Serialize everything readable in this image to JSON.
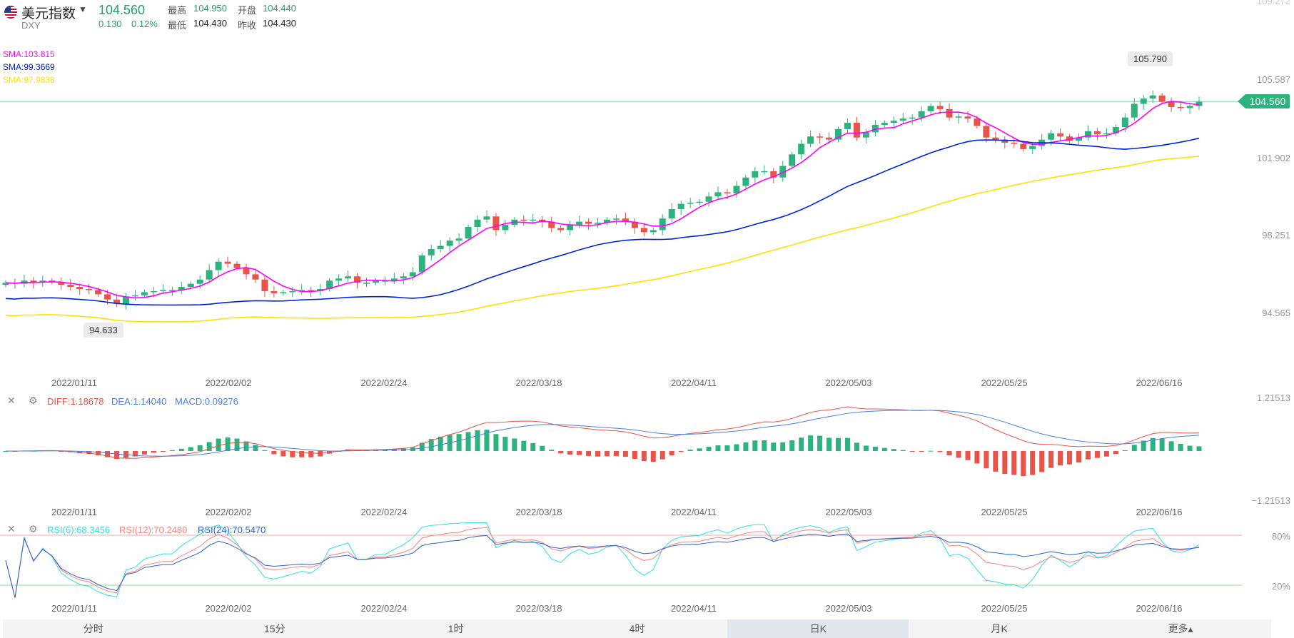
{
  "header": {
    "name": "美元指数",
    "ticker": "DXY",
    "price": "104.560",
    "change": "0.130",
    "change_pct": "0.12%",
    "high_label": "最高",
    "high": "104.950",
    "open_label": "开盘",
    "open": "104.440",
    "low_label": "最低",
    "low": "104.430",
    "prev_label": "昨收",
    "prev": "104.430",
    "dropdown_icon": "caret-down-icon",
    "flag_icon": "us-flag-icon"
  },
  "colors": {
    "up": "#2db37e",
    "down": "#e8534a",
    "sma1": "#ff00ff",
    "sma2": "#0022dd",
    "sma3": "#ffe100",
    "diff": "#e8534a",
    "dea": "#4a7fe0",
    "rsi6": "#2ee0e0",
    "rsi12": "#ff8080",
    "rsi24": "#3060d0"
  },
  "price_panel": {
    "sma_labels": [
      "SMA:103.815",
      "SMA:99.3669",
      "SMA:97.9838"
    ],
    "top_label": "109.272",
    "y_labels": [
      "105.587",
      "101.902",
      "98.251",
      "94.565"
    ],
    "current_price": "104.560",
    "high_tip": "105.790",
    "low_tip": "94.633"
  },
  "dates": [
    "2022/01/11",
    "2022/02/02",
    "2022/02/24",
    "2022/03/18",
    "2022/04/11",
    "2022/05/03",
    "2022/05/25",
    "2022/06/16"
  ],
  "macd_panel": {
    "diff_label": "DIFF:1.18678",
    "dea_label": "DEA:1.14040",
    "macd_label": "MACD:0.09276",
    "y_top": "1.21513",
    "y_bottom": "−1.21513"
  },
  "rsi_panel": {
    "rsi6_label": "RSI(6):68.3456",
    "rsi12_label": "RSI(12):70.2480",
    "rsi24_label": "RSI(24):70.5470",
    "y_top": "80%",
    "y_bottom": "20%"
  },
  "tabs": [
    "分时",
    "15分",
    "1时",
    "4时",
    "日K",
    "月K",
    "更多▴"
  ],
  "active_tab": 4,
  "chart_data": [
    {
      "type": "candlestick",
      "title": "美元指数 DXY",
      "ylim": [
        93.0,
        109.272
      ],
      "x_dates": [
        "2022/01/11",
        "2022/02/02",
        "2022/02/24",
        "2022/03/18",
        "2022/04/11",
        "2022/05/03",
        "2022/05/25",
        "2022/06/16"
      ],
      "closes": [
        95.95,
        95.9,
        96.05,
        95.95,
        96.05,
        96.0,
        95.85,
        95.75,
        95.65,
        95.6,
        95.4,
        95.15,
        94.95,
        95.3,
        95.35,
        95.5,
        95.55,
        95.6,
        95.6,
        95.75,
        95.9,
        96.1,
        96.55,
        96.95,
        96.85,
        96.65,
        96.35,
        96.1,
        95.55,
        95.45,
        95.5,
        95.55,
        95.6,
        95.55,
        95.65,
        96.05,
        96.15,
        96.25,
        95.95,
        95.95,
        96.05,
        96.05,
        96.15,
        96.25,
        96.45,
        97.25,
        97.55,
        97.7,
        97.95,
        98.05,
        98.6,
        98.95,
        99.1,
        98.45,
        98.7,
        98.95,
        98.9,
        98.95,
        98.85,
        98.55,
        98.45,
        98.7,
        98.85,
        98.75,
        98.8,
        98.95,
        99.0,
        98.85,
        98.55,
        98.35,
        98.45,
        99.0,
        99.45,
        99.7,
        99.75,
        99.8,
        100.05,
        100.25,
        100.2,
        100.55,
        100.95,
        101.25,
        101.25,
        100.95,
        101.5,
        102.05,
        102.55,
        102.9,
        102.85,
        102.75,
        103.25,
        103.55,
        102.85,
        103.1,
        103.45,
        103.55,
        103.65,
        103.75,
        103.8,
        104.1,
        104.35,
        104.2,
        103.8,
        103.85,
        103.75,
        103.4,
        102.85,
        102.75,
        102.6,
        102.55,
        102.3,
        102.45,
        102.75,
        103.05,
        102.9,
        102.7,
        102.85,
        103.15,
        103.0,
        103.05,
        103.35,
        103.8,
        104.45,
        104.7,
        104.85,
        104.55,
        104.3,
        104.25,
        104.35,
        104.55
      ],
      "sma_periods_labels": [
        "SMA:103.815",
        "SMA:99.3669",
        "SMA:97.9838"
      ],
      "high_marker": 105.79,
      "low_marker": 94.633,
      "current": 104.56,
      "grid": false
    },
    {
      "type": "bar",
      "title": "MACD",
      "series": [
        {
          "name": "DIFF",
          "value": 1.18678
        },
        {
          "name": "DEA",
          "value": 1.1404
        },
        {
          "name": "MACD",
          "value": 0.09276
        }
      ],
      "ylim": [
        -1.21513,
        1.21513
      ]
    },
    {
      "type": "line",
      "title": "RSI",
      "series": [
        {
          "name": "RSI(6)",
          "value": 68.3456
        },
        {
          "name": "RSI(12)",
          "value": 70.248
        },
        {
          "name": "RSI(24)",
          "value": 70.547
        }
      ],
      "ylim": [
        0,
        100
      ],
      "reference_lines": [
        "80%",
        "20%"
      ]
    }
  ]
}
